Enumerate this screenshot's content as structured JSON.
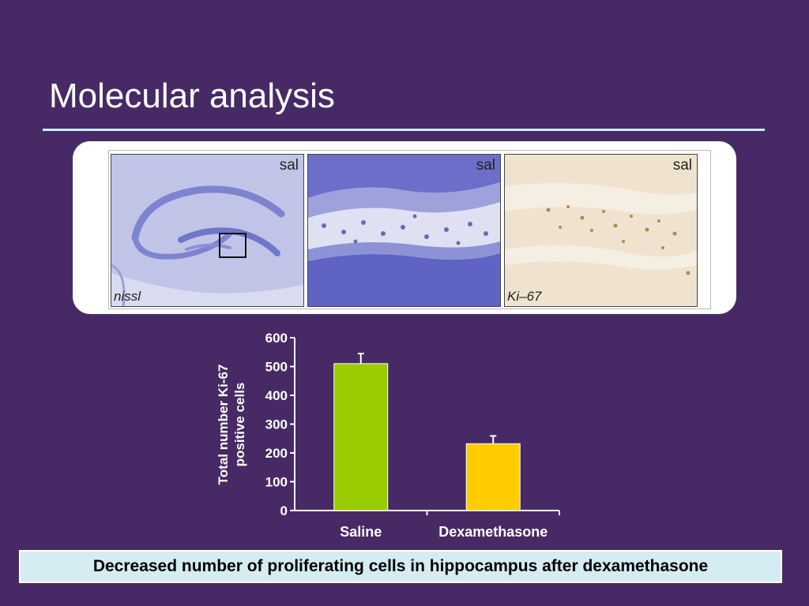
{
  "slide": {
    "title": "Molecular analysis",
    "caption": "Decreased number of proliferating cells in hippocampus after dexamethasone"
  },
  "micrographs": [
    {
      "tag": "sal",
      "stain": "nissl"
    },
    {
      "tag": "sal",
      "stain": ""
    },
    {
      "tag": "sal",
      "stain": "Ki–67"
    }
  ],
  "colors": {
    "background": "#472a65",
    "rule": "#c9eef2",
    "saline_bar": "#99cc00",
    "dexamethasone_bar": "#ffcc00",
    "caption_box": "#d4ecf2"
  },
  "chart_data": {
    "type": "bar",
    "categories": [
      "Saline",
      "Dexamethasone"
    ],
    "values": [
      510,
      232
    ],
    "errors": [
      35,
      27
    ],
    "ylabel": "Total number Ki-67 positive cells",
    "ylim": [
      0,
      600
    ],
    "yticks": [
      0,
      100,
      200,
      300,
      400,
      500,
      600
    ],
    "grid": false,
    "legend": "none"
  }
}
